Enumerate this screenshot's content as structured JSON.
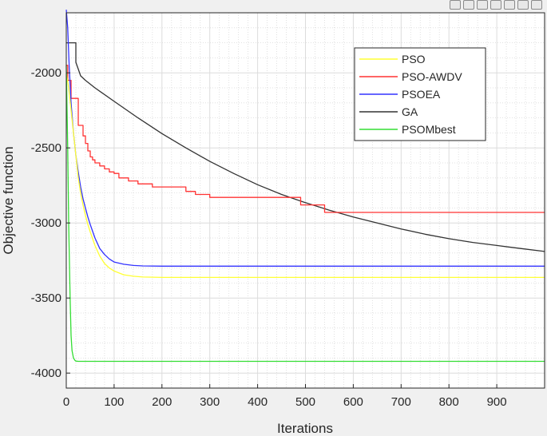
{
  "toolbar": {
    "icons": [
      "save-icon",
      "insert-icon",
      "datatip-icon",
      "pan-icon",
      "zoom-in-icon",
      "zoom-out-icon",
      "home-icon"
    ]
  },
  "chart_data": {
    "type": "line",
    "title": "",
    "xlabel": "Iterations",
    "ylabel": "Objective function",
    "xlim": [
      0,
      1000
    ],
    "ylim": [
      -4100,
      -1600
    ],
    "xticks": [
      0,
      100,
      200,
      300,
      400,
      500,
      600,
      700,
      800,
      900
    ],
    "yticks": [
      -2000,
      -2500,
      -3000,
      -3500,
      -4000
    ],
    "grid": true,
    "minor_grid": true,
    "legend_position": "top-right",
    "series": [
      {
        "name": "PSO",
        "color": "#ffff33",
        "x": [
          0,
          5,
          10,
          15,
          20,
          25,
          30,
          35,
          40,
          45,
          50,
          60,
          70,
          80,
          90,
          100,
          120,
          140,
          160,
          200,
          300,
          1000
        ],
        "y": [
          -2000,
          -2100,
          -2250,
          -2400,
          -2550,
          -2700,
          -2800,
          -2880,
          -2950,
          -3010,
          -3060,
          -3150,
          -3220,
          -3270,
          -3300,
          -3320,
          -3345,
          -3355,
          -3360,
          -3363,
          -3363,
          -3363
        ]
      },
      {
        "name": "PSO-AWDV",
        "color": "#ff3333",
        "x": [
          0,
          3,
          3,
          10,
          10,
          25,
          25,
          35,
          35,
          40,
          40,
          45,
          45,
          50,
          50,
          55,
          55,
          60,
          60,
          70,
          70,
          80,
          80,
          90,
          90,
          100,
          100,
          110,
          110,
          130,
          130,
          150,
          150,
          180,
          180,
          250,
          250,
          270,
          270,
          300,
          300,
          490,
          490,
          540,
          540,
          1000
        ],
        "y": [
          -1950,
          -1950,
          -2050,
          -2050,
          -2170,
          -2170,
          -2350,
          -2350,
          -2420,
          -2420,
          -2470,
          -2470,
          -2520,
          -2520,
          -2560,
          -2560,
          -2580,
          -2580,
          -2600,
          -2600,
          -2620,
          -2620,
          -2640,
          -2640,
          -2660,
          -2660,
          -2670,
          -2670,
          -2700,
          -2700,
          -2720,
          -2720,
          -2740,
          -2740,
          -2760,
          -2760,
          -2790,
          -2790,
          -2810,
          -2810,
          -2830,
          -2830,
          -2880,
          -2880,
          -2930,
          -2930
        ]
      },
      {
        "name": "PSOEA",
        "color": "#3333ff",
        "x": [
          0,
          3,
          6,
          10,
          15,
          20,
          25,
          30,
          35,
          40,
          45,
          50,
          60,
          70,
          80,
          90,
          100,
          120,
          140,
          160,
          200,
          300,
          1000
        ],
        "y": [
          -1580,
          -1700,
          -1950,
          -2200,
          -2400,
          -2550,
          -2660,
          -2760,
          -2840,
          -2900,
          -2960,
          -3010,
          -3100,
          -3170,
          -3210,
          -3240,
          -3260,
          -3275,
          -3283,
          -3286,
          -3288,
          -3288,
          -3288
        ]
      },
      {
        "name": "GA",
        "color": "#333333",
        "x": [
          0,
          20,
          20,
          30,
          40,
          60,
          100,
          150,
          200,
          250,
          300,
          350,
          400,
          450,
          500,
          550,
          600,
          650,
          700,
          750,
          800,
          850,
          900,
          950,
          1000
        ],
        "y": [
          -1800,
          -1800,
          -1930,
          -2020,
          -2050,
          -2100,
          -2190,
          -2300,
          -2405,
          -2500,
          -2590,
          -2670,
          -2745,
          -2810,
          -2865,
          -2915,
          -2960,
          -3000,
          -3040,
          -3075,
          -3105,
          -3130,
          -3150,
          -3170,
          -3190
        ]
      },
      {
        "name": "PSOMbest",
        "color": "#33dd33",
        "x": [
          0,
          3,
          5,
          8,
          10,
          12,
          15,
          18,
          20,
          25,
          30,
          1000
        ],
        "y": [
          -1950,
          -2500,
          -3000,
          -3500,
          -3750,
          -3850,
          -3900,
          -3915,
          -3920,
          -3922,
          -3922,
          -3922
        ]
      }
    ]
  }
}
